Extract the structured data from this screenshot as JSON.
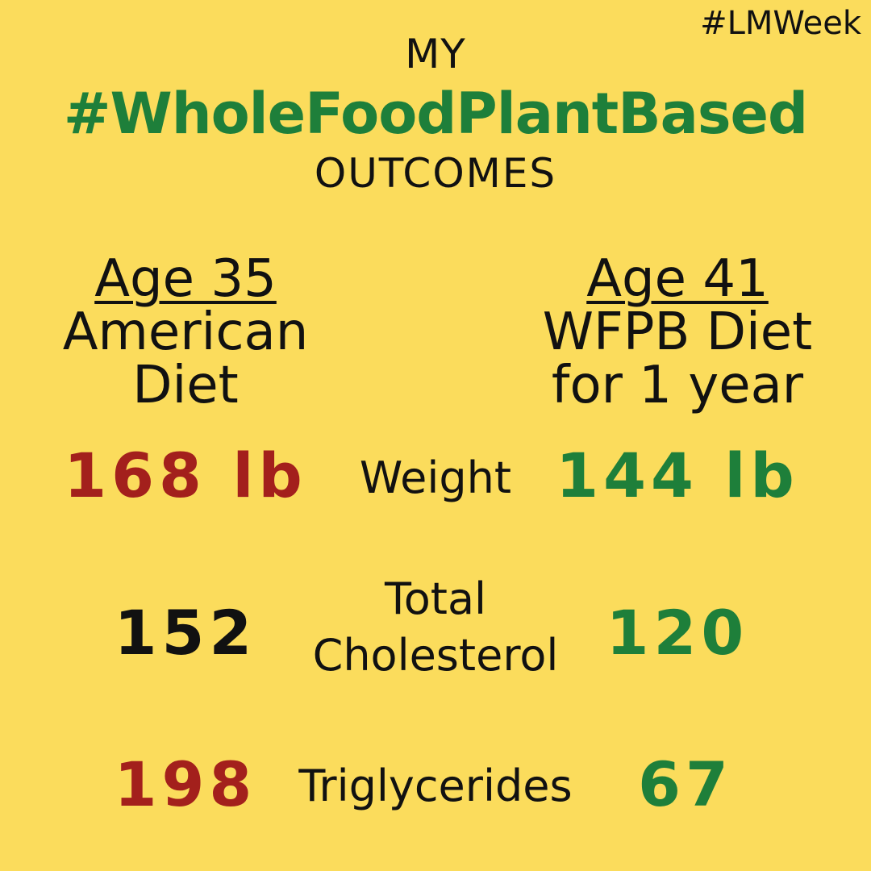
{
  "hashtag": "#LMWeek",
  "title": {
    "line1": "MY",
    "line2": "#WholeFoodPlantBased",
    "line3": "OUTCOMES"
  },
  "columns": {
    "left": {
      "age": "Age 35",
      "line1": "American",
      "line2": "Diet"
    },
    "right": {
      "age": "Age 41",
      "line1": "WFPB Diet",
      "line2": "for 1 year"
    }
  },
  "metrics": [
    {
      "label_lines": [
        "Weight"
      ],
      "left": "168 lb",
      "right": "144 lb",
      "left_color": "#A3201C",
      "right_color": "#1E7F3A"
    },
    {
      "label_lines": [
        "Total",
        "Cholesterol"
      ],
      "left": "152",
      "right": "120",
      "left_color": "#111111",
      "right_color": "#1E7F3A"
    },
    {
      "label_lines": [
        "Triglycerides"
      ],
      "left": "198",
      "right": "67",
      "left_color": "#A3201C",
      "right_color": "#1E7F3A"
    }
  ],
  "colors": {
    "background": "#FBDC5C",
    "green": "#1E7F3A",
    "red": "#A3201C",
    "text": "#111111"
  }
}
